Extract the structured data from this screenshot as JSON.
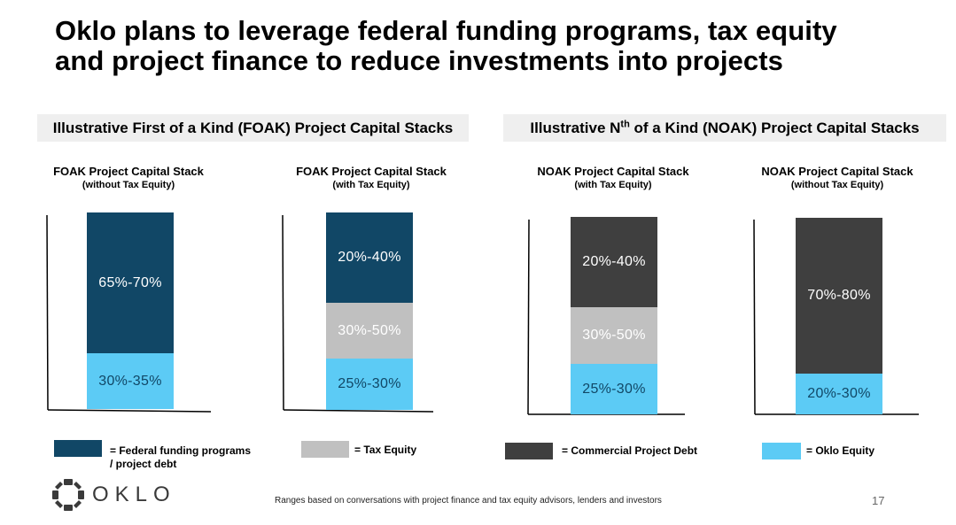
{
  "title": "Oklo plans to leverage federal funding programs, tax equity\nand project finance to reduce investments into projects",
  "sections": {
    "foak_header": "Illustrative First of a Kind (FOAK) Project Capital Stacks",
    "noak_header_pre": "Illustrative N",
    "noak_header_sup": "th",
    "noak_header_post": " of a Kind (NOAK) Project Capital Stacks"
  },
  "colors": {
    "federal": "#114766",
    "tax_equity": "#c0c0c0",
    "commercial_debt": "#3f3f3f",
    "oklo_equity": "#5ccbf5"
  },
  "chart_data": [
    {
      "type": "bar",
      "title": "FOAK Project Capital Stack",
      "subtitle": "(without Tax Equity)",
      "segments": [
        {
          "label": "30%-35%",
          "category": "oklo_equity",
          "low": 30,
          "high": 35
        },
        {
          "label": "65%-70%",
          "category": "federal",
          "low": 65,
          "high": 70
        }
      ]
    },
    {
      "type": "bar",
      "title": "FOAK Project Capital Stack",
      "subtitle": "(with Tax Equity)",
      "segments": [
        {
          "label": "25%-30%",
          "category": "oklo_equity",
          "low": 25,
          "high": 30
        },
        {
          "label": "30%-50%",
          "category": "tax_equity",
          "low": 30,
          "high": 50
        },
        {
          "label": "20%-40%",
          "category": "federal",
          "low": 20,
          "high": 40
        }
      ]
    },
    {
      "type": "bar",
      "title": "NOAK Project Capital Stack",
      "subtitle": "(with Tax Equity)",
      "segments": [
        {
          "label": "25%-30%",
          "category": "oklo_equity",
          "low": 25,
          "high": 30
        },
        {
          "label": "30%-50%",
          "category": "tax_equity",
          "low": 30,
          "high": 50
        },
        {
          "label": "20%-40%",
          "category": "commercial_debt",
          "low": 20,
          "high": 40
        }
      ]
    },
    {
      "type": "bar",
      "title": "NOAK Project Capital Stack",
      "subtitle": "(without Tax Equity)",
      "segments": [
        {
          "label": "20%-30%",
          "category": "oklo_equity",
          "low": 20,
          "high": 30
        },
        {
          "label": "70%-80%",
          "category": "commercial_debt",
          "low": 70,
          "high": 80
        }
      ]
    }
  ],
  "legend": [
    {
      "key": "federal",
      "label": "=  Federal funding programs\n    / project debt"
    },
    {
      "key": "tax_equity",
      "label": "= Tax Equity"
    },
    {
      "key": "commercial_debt",
      "label": "= Commercial Project Debt"
    },
    {
      "key": "oklo_equity",
      "label": "= Oklo Equity"
    }
  ],
  "logo": {
    "text": "OKLO",
    "icon": "oklo-logo-icon"
  },
  "footnote": "Ranges based on conversations with project finance and tax equity advisors, lenders and investors",
  "page_number": "17"
}
